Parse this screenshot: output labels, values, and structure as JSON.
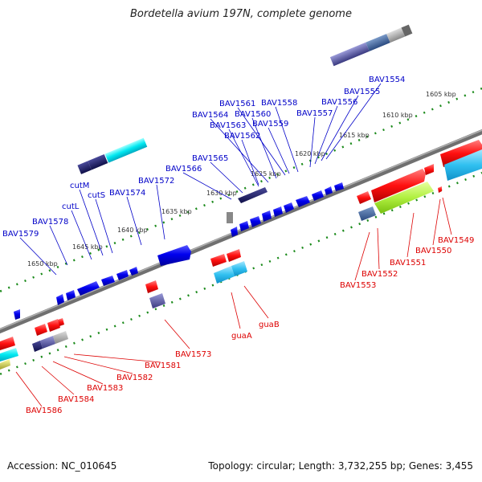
{
  "title": "Bordetella avium 197N, complete genome",
  "footer": {
    "accession": "Accession: NC_010645",
    "summary": "Topology: circular; Length: 3,732,255 bp; Genes: 3,455"
  },
  "colors": {
    "backbone": "#808080",
    "ruler_dots": "#1a8a1a",
    "plus_label": "#0000c8",
    "minus_label": "#dd0000"
  },
  "ruler": {
    "ticks": [
      {
        "label": "1605 kbp",
        "kbp": 1605
      },
      {
        "label": "1610 kbp",
        "kbp": 1610
      },
      {
        "label": "1615 kbp",
        "kbp": 1615
      },
      {
        "label": "1620 kbp",
        "kbp": 1620
      },
      {
        "label": "1625 kbp",
        "kbp": 1625
      },
      {
        "label": "1630 kbp",
        "kbp": 1630
      },
      {
        "label": "1635 kbp",
        "kbp": 1635
      },
      {
        "label": "1640 kbp",
        "kbp": 1640
      },
      {
        "label": "1645 kbp",
        "kbp": 1645
      },
      {
        "label": "1650 kbp",
        "kbp": 1650
      }
    ]
  },
  "genes_plus_strand": [
    "BAV1554",
    "BAV1555",
    "BAV1556",
    "BAV1558",
    "BAV1557",
    "BAV1561",
    "BAV1560",
    "BAV1559",
    "BAV1564",
    "BAV1563",
    "BAV1562",
    "BAV1565",
    "BAV1566",
    "BAV1572",
    "BAV1574",
    "cutS",
    "cutM",
    "cutL",
    "BAV1578",
    "BAV1579"
  ],
  "genes_minus_strand": [
    "BAV1549",
    "BAV1550",
    "BAV1551",
    "BAV1552",
    "BAV1553",
    "guaB",
    "guaA",
    "BAV1573",
    "BAV1581",
    "BAV1582",
    "BAV1583",
    "BAV1584",
    "BAV1586"
  ]
}
